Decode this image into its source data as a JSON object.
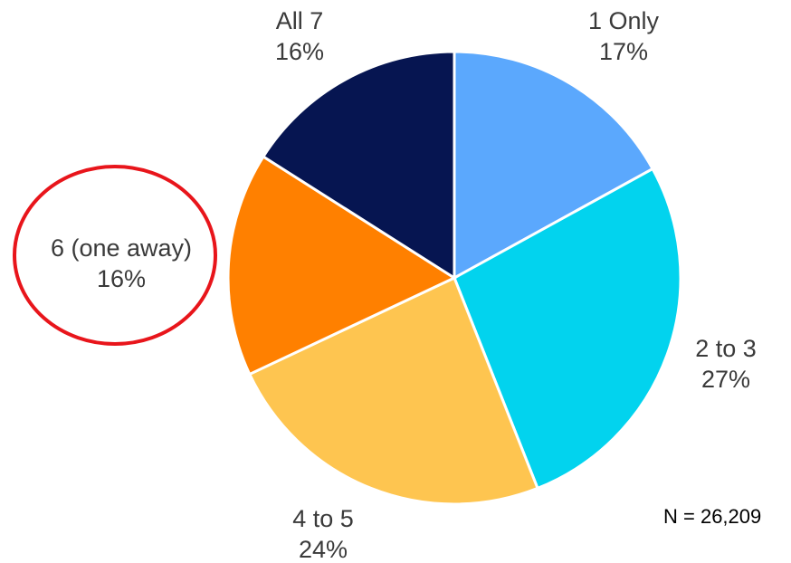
{
  "chart_data": {
    "type": "pie",
    "title": "",
    "slices": [
      {
        "label": "1 Only",
        "percent_label": "17%",
        "value": 17,
        "color": "#5BA8FD"
      },
      {
        "label": "2 to 3",
        "percent_label": "27%",
        "value": 27,
        "color": "#02D3EE"
      },
      {
        "label": "4 to 5",
        "percent_label": "24%",
        "value": 24,
        "color": "#FEC550"
      },
      {
        "label": "6 (one away)",
        "percent_label": "16%",
        "value": 16,
        "color": "#FF8000",
        "highlighted": true
      },
      {
        "label": "All 7",
        "percent_label": "16%",
        "value": 16,
        "color": "#061551"
      }
    ],
    "start_angle": "12 o'clock",
    "direction": "clockwise",
    "highlight_color": "#E8151B"
  },
  "note": "N = 26,209"
}
